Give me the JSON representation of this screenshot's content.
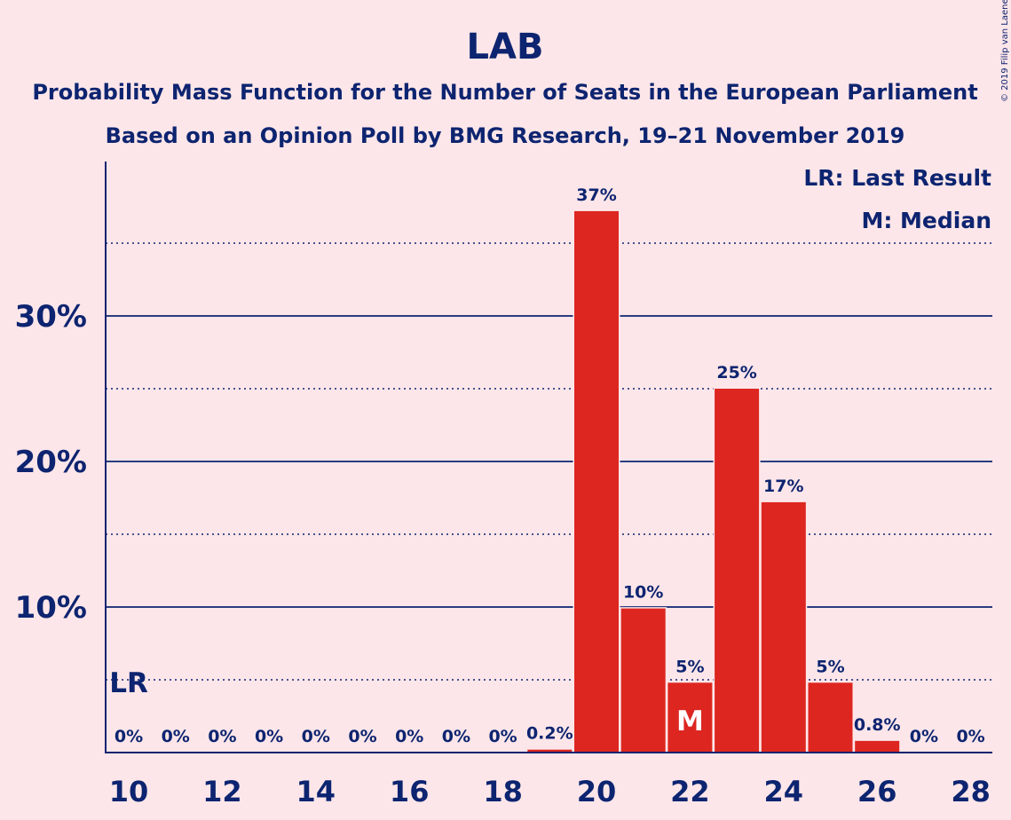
{
  "chart_data": {
    "type": "bar",
    "title": "LAB",
    "subtitle_line1": "Probability Mass Function for the Number of Seats in the European Parliament",
    "subtitle_line2": "Based on an Opinion Poll by BMG Research, 19–21 November 2019",
    "copyright": "© 2019 Filip van Laenen",
    "legend": [
      "LR: Last Result",
      "M: Median"
    ],
    "legend_position": "top-right",
    "x": [
      10,
      11,
      12,
      13,
      14,
      15,
      16,
      17,
      18,
      19,
      20,
      21,
      22,
      23,
      24,
      25,
      26,
      27,
      28
    ],
    "values": [
      0,
      0,
      0,
      0,
      0,
      0,
      0,
      0,
      0,
      0.2,
      37.2,
      9.9,
      4.8,
      25.0,
      17.2,
      4.8,
      0.8,
      0,
      0
    ],
    "value_labels": [
      "0%",
      "0%",
      "0%",
      "0%",
      "0%",
      "0%",
      "0%",
      "0%",
      "0%",
      "0.2%",
      "37%",
      "10%",
      "5%",
      "25%",
      "17%",
      "5%",
      "0.8%",
      "0%",
      "0%"
    ],
    "x_tick_labels": [
      "10",
      "12",
      "14",
      "16",
      "18",
      "20",
      "22",
      "24",
      "26",
      "28"
    ],
    "y_tick_labels": [
      "10%",
      "20%",
      "30%"
    ],
    "ylim": [
      0,
      40
    ],
    "grid": {
      "solid": [
        10,
        20,
        30
      ],
      "dotted": [
        5,
        15,
        25,
        35
      ]
    },
    "last_result": {
      "seat": 10,
      "label": "LR"
    },
    "median": {
      "seat": 22,
      "label": "M"
    },
    "colors": {
      "bar": "#dd2620",
      "text": "#0d2470",
      "background": "#fde6e9"
    }
  }
}
